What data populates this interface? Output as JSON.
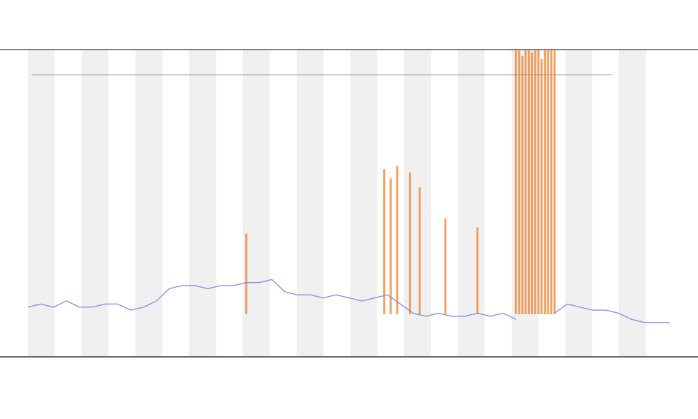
{
  "chart_data": {
    "type": "line",
    "xlim": [
      0,
      100
    ],
    "ylim": [
      0,
      100
    ],
    "x": [
      0,
      2,
      4,
      6,
      8,
      10,
      12,
      14,
      16,
      18,
      20,
      22,
      24,
      26,
      28,
      30,
      32,
      34,
      36,
      38,
      40,
      42,
      44,
      46,
      48,
      50,
      52,
      54,
      56,
      58,
      60,
      62,
      64,
      66,
      68,
      70,
      72,
      74,
      76,
      78,
      80,
      82,
      84,
      86,
      88,
      90,
      92,
      94,
      96,
      98,
      100
    ],
    "series": [
      {
        "color": "#7a7ae0",
        "values": [
          16,
          17,
          16,
          18,
          16,
          16,
          17,
          17,
          15,
          16,
          18,
          22,
          23,
          23,
          22,
          23,
          23,
          24,
          24,
          25,
          21,
          20,
          20,
          19,
          20,
          19,
          18,
          19,
          20,
          17,
          14,
          13,
          14,
          13,
          13,
          14,
          13,
          14,
          12,
          null,
          null,
          14,
          17,
          16,
          15,
          15,
          14,
          12,
          11,
          11,
          11
        ]
      }
    ],
    "spikes": {
      "color": "#f07820",
      "x": [
        55.5,
        56.5,
        57.5,
        59.5,
        61,
        76,
        76.5,
        77,
        77.5,
        78,
        78.5,
        79,
        79.5,
        80,
        80.5,
        81,
        81.5,
        82,
        34,
        65,
        70
      ],
      "values": [
        61,
        58,
        62,
        60,
        55,
        100,
        100,
        98,
        100,
        100,
        99,
        100,
        100,
        97,
        100,
        100,
        100,
        100,
        40,
        45,
        42
      ]
    }
  }
}
